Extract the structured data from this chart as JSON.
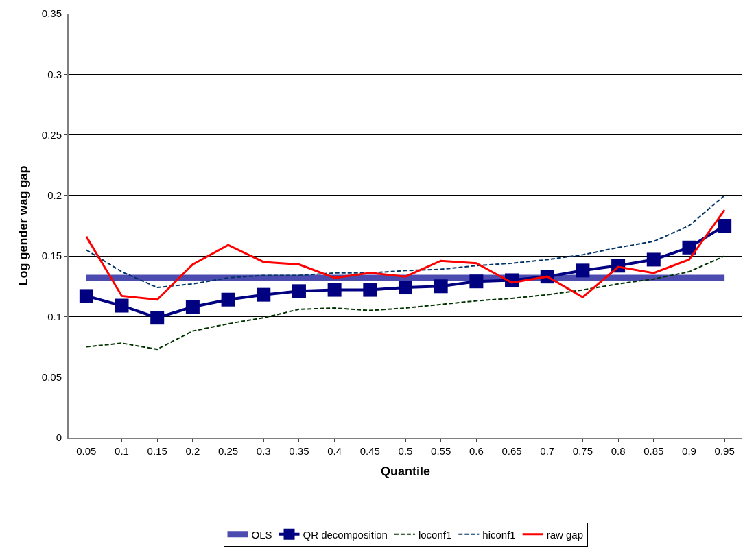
{
  "chart_data": {
    "type": "line",
    "xlabel": "Quantile",
    "ylabel": "Log gender wag gap",
    "categories": [
      "0.05",
      "0.1",
      "0.15",
      "0.2",
      "0.25",
      "0.3",
      "0.35",
      "0.4",
      "0.45",
      "0.5",
      "0.55",
      "0.6",
      "0.65",
      "0.7",
      "0.75",
      "0.8",
      "0.85",
      "0.9",
      "0.95"
    ],
    "ylim": [
      0,
      0.35
    ],
    "yticks": [
      0,
      0.05,
      0.1,
      0.15,
      0.2,
      0.25,
      0.3,
      0.35
    ],
    "grid": "y",
    "legend": "bottom",
    "series": [
      {
        "name": "OLS",
        "color": "#4b4bb0",
        "marker": "none",
        "line_style": "solid",
        "values": [
          0.132,
          0.132,
          0.132,
          0.132,
          0.132,
          0.132,
          0.132,
          0.132,
          0.132,
          0.132,
          0.132,
          0.132,
          0.132,
          0.132,
          0.132,
          0.132,
          0.132,
          0.132,
          0.132
        ]
      },
      {
        "name": "QR decomposition",
        "color": "#000080",
        "marker": "square",
        "line_style": "solid",
        "values": [
          0.117,
          0.109,
          0.099,
          0.108,
          0.114,
          0.118,
          0.121,
          0.122,
          0.122,
          0.124,
          0.125,
          0.129,
          0.13,
          0.133,
          0.138,
          0.142,
          0.147,
          0.157,
          0.175
        ]
      },
      {
        "name": "loconf1",
        "color": "#003300",
        "marker": "none",
        "line_style": "dashed",
        "values": [
          0.075,
          0.078,
          0.073,
          0.088,
          0.094,
          0.099,
          0.106,
          0.107,
          0.105,
          0.107,
          0.11,
          0.113,
          0.115,
          0.118,
          0.122,
          0.127,
          0.131,
          0.137,
          0.15
        ]
      },
      {
        "name": "hiconf1",
        "color": "#003366",
        "marker": "none",
        "line_style": "dashed",
        "values": [
          0.155,
          0.137,
          0.124,
          0.127,
          0.132,
          0.134,
          0.134,
          0.136,
          0.136,
          0.138,
          0.139,
          0.142,
          0.144,
          0.147,
          0.151,
          0.157,
          0.162,
          0.175,
          0.2
        ]
      },
      {
        "name": "raw gap",
        "color": "#ff0000",
        "marker": "none",
        "line_style": "solid",
        "values": [
          0.166,
          0.117,
          0.114,
          0.143,
          0.159,
          0.145,
          0.143,
          0.132,
          0.136,
          0.133,
          0.146,
          0.144,
          0.128,
          0.133,
          0.116,
          0.141,
          0.136,
          0.147,
          0.188
        ]
      }
    ]
  }
}
